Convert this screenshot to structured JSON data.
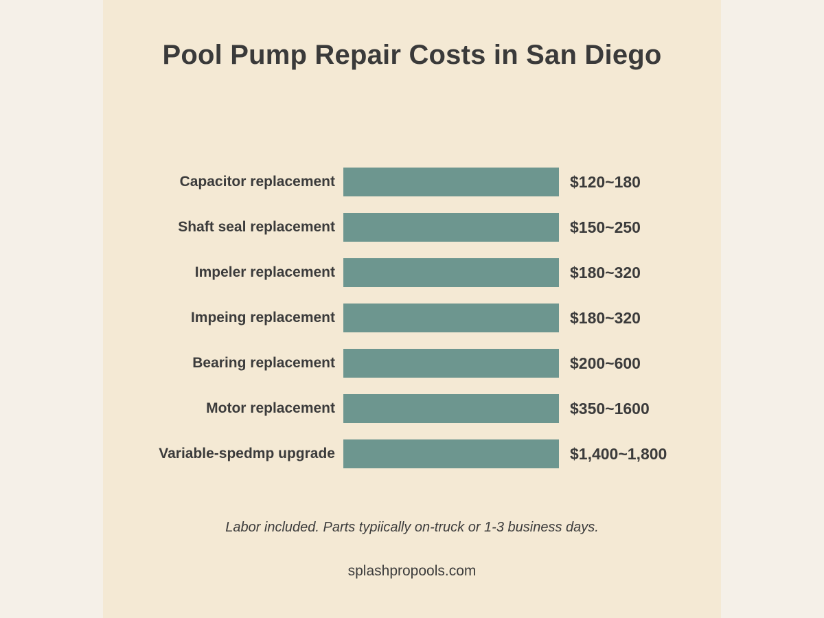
{
  "chart_data": {
    "type": "bar",
    "orientation": "horizontal",
    "title": "Pool Pump Repair Costs in San Diego",
    "categories": [
      "Capacitor replacement",
      "Shaft seal replacement",
      "Impeler replacement",
      "Impeing replacement",
      "Bearing replacement",
      "Motor replacement",
      "Variable-spedmp upgrade"
    ],
    "value_labels": [
      "$120~180",
      "$150~250",
      "$180~320",
      "$180~320",
      "$200~600",
      "$350~1600",
      "$1,400~1,800"
    ],
    "ranges": [
      [
        120,
        180
      ],
      [
        150,
        250
      ],
      [
        180,
        320
      ],
      [
        180,
        320
      ],
      [
        200,
        600
      ],
      [
        350,
        1600
      ],
      [
        1400,
        1800
      ]
    ],
    "bar_lengths": "equal",
    "bar_color": "#6d968f",
    "grid": false,
    "legend": "none"
  },
  "footer": {
    "note": "Labor included. Parts typiically on-truck or 1-3 business days.",
    "website": "splashpropools.com"
  },
  "colors": {
    "panel_background": "#f4e9d4",
    "page_background": "#f5f0e8",
    "text": "#3b3b3b"
  }
}
